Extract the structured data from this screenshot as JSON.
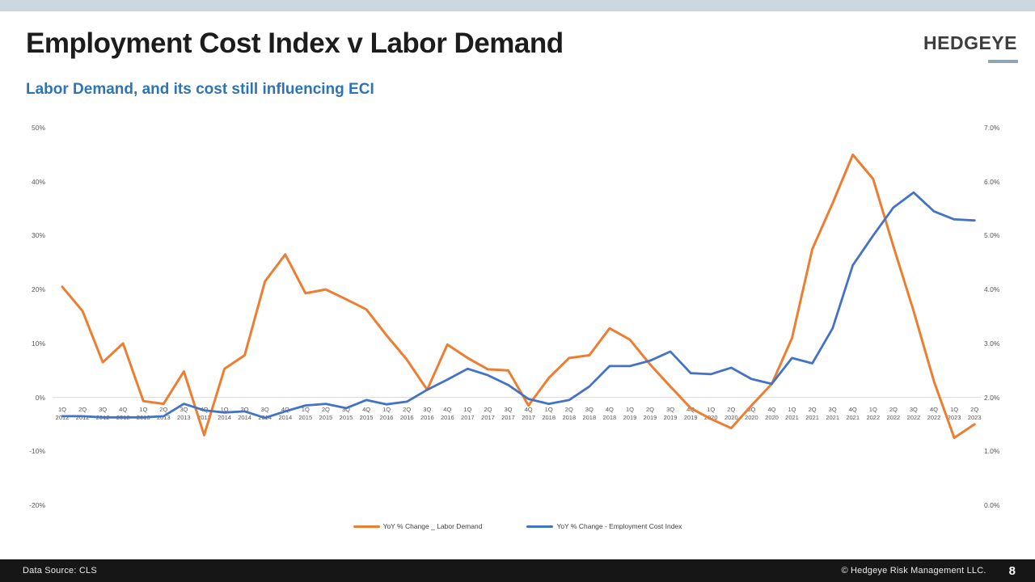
{
  "slide": {
    "title": "Employment Cost Index v Labor Demand",
    "subtitle": "Labor Demand, and its cost still influencing ECI",
    "logo_text": "HEDGEYE",
    "footer_left": "Data Source: CLS",
    "footer_copyright": "© Hedgeye Risk Management LLC.",
    "page_number": "8"
  },
  "colors": {
    "accent_bar": "#cbd8e0",
    "subtitle_blue": "#2e74b5",
    "labor_demand_orange": "#ED7D31",
    "eci_blue": "#4472C4",
    "gridline": "#d9d9d9",
    "footer_bg": "#161616"
  },
  "chart_data": {
    "type": "line",
    "title": "Employment Cost Index v Labor Demand",
    "categories": [
      "1Q 2012",
      "2Q 2012",
      "3Q 2012",
      "4Q 2012",
      "1Q 2013",
      "2Q 2013",
      "3Q 2013",
      "4Q 2013",
      "1Q 2014",
      "2Q 2014",
      "3Q 2014",
      "4Q 2014",
      "1Q 2015",
      "2Q 2015",
      "3Q 2015",
      "4Q 2015",
      "1Q 2016",
      "2Q 2016",
      "3Q 2016",
      "4Q 2016",
      "1Q 2017",
      "2Q 2017",
      "3Q 2017",
      "4Q 2017",
      "1Q 2018",
      "2Q 2018",
      "3Q 2018",
      "4Q 2018",
      "1Q 2019",
      "2Q 2019",
      "3Q 2019",
      "4Q 2019",
      "1Q 2020",
      "2Q 2020",
      "3Q 2020",
      "4Q 2020",
      "1Q 2021",
      "2Q 2021",
      "3Q 2021",
      "4Q 2021",
      "1Q 2022",
      "2Q 2022",
      "3Q 2022",
      "4Q 2022",
      "1Q 2023",
      "2Q 2023"
    ],
    "series": [
      {
        "name": "YoY % Change _ Labor Demand",
        "axis": "left",
        "color": "#ED7D31",
        "values": [
          20.5,
          16,
          6.5,
          10,
          -0.7,
          -1.2,
          4.8,
          -7,
          5.3,
          7.8,
          21.5,
          26.5,
          19.3,
          20,
          18.2,
          16.3,
          11.5,
          7,
          1.4,
          9.8,
          7.3,
          5.2,
          5,
          -1.5,
          3.6,
          7.3,
          7.8,
          12.8,
          10.7,
          6.1,
          2,
          -2,
          -4,
          -5.7,
          -1.5,
          2.5,
          11,
          27.5,
          36,
          45,
          40.5,
          28,
          16,
          3,
          -7.5,
          -5
        ]
      },
      {
        "name": "YoY % Change - Employment Cost Index",
        "axis": "right",
        "color": "#4472C4",
        "values": [
          1.65,
          1.65,
          1.63,
          1.63,
          1.63,
          1.65,
          1.88,
          1.76,
          1.72,
          1.74,
          1.62,
          1.74,
          1.85,
          1.88,
          1.8,
          1.95,
          1.87,
          1.92,
          2.14,
          2.33,
          2.53,
          2.41,
          2.23,
          1.97,
          1.88,
          1.95,
          2.2,
          2.58,
          2.58,
          2.68,
          2.85,
          2.45,
          2.43,
          2.55,
          2.34,
          2.25,
          2.73,
          2.63,
          3.28,
          4.45,
          5.0,
          5.52,
          5.8,
          5.45,
          5.3,
          5.28
        ]
      }
    ],
    "left_axis": {
      "min": -20,
      "max": 50,
      "ticks": [
        "50%",
        "40%",
        "30%",
        "20%",
        "10%",
        "0%",
        "-10%",
        "-20%"
      ]
    },
    "right_axis": {
      "min": 0,
      "max": 7,
      "ticks": [
        "7.0%",
        "6.0%",
        "5.0%",
        "4.0%",
        "3.0%",
        "2.0%",
        "1.0%",
        "0.0%"
      ]
    },
    "grid": "horizontal zero line only",
    "legend_position": "bottom"
  }
}
